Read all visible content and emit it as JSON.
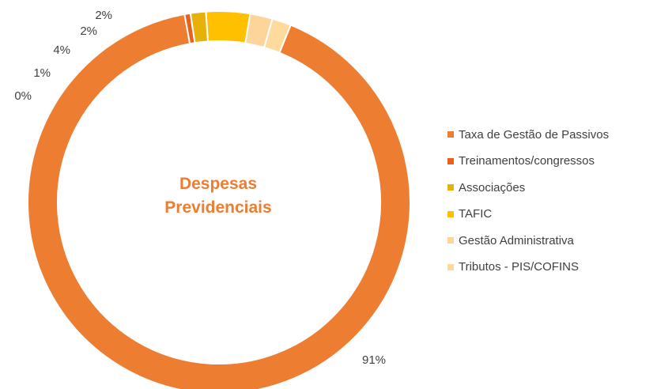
{
  "chart_data": {
    "type": "donut",
    "center_text": [
      "Despesas",
      "Previdenciais"
    ],
    "slices": [
      {
        "name": "Taxa de Gestão de Passivos",
        "value": 91,
        "label": "91%",
        "color": "#ED7D31"
      },
      {
        "name": "Treinamentos/congressos",
        "value": 0.5,
        "label": "0%",
        "color": "#E8601C"
      },
      {
        "name": "Associações",
        "value": 1.3,
        "label": "1%",
        "color": "#E6B10A"
      },
      {
        "name": "TAFIC",
        "value": 3.7,
        "label": "4%",
        "color": "#FFC000"
      },
      {
        "name": "Gestão Administrativa",
        "value": 1.9,
        "label": "2%",
        "color": "#FDD49A"
      },
      {
        "name": "Tributos -  PIS/COFINS",
        "value": 1.6,
        "label": "2%",
        "color": "#FEDA9C"
      }
    ],
    "legend_position": "right"
  }
}
